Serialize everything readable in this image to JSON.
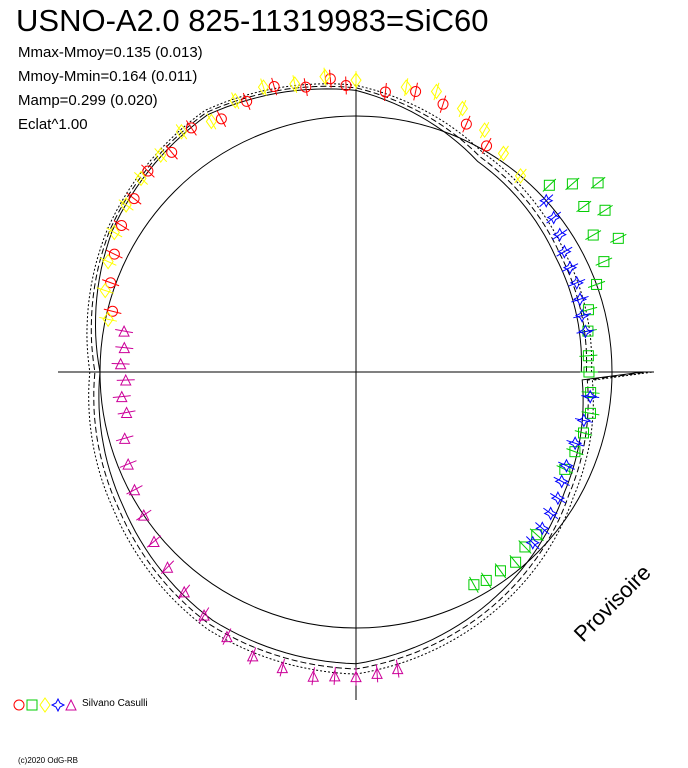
{
  "chart_data": {
    "type": "scatter",
    "projection": "polar-phase",
    "title": "USNO-A2.0 825-11319983=SiC60",
    "stats": [
      "Mmax-Mmoy=0.135 (0.013)",
      "Mmoy-Mmin=0.164 (0.011)",
      "Mamp=0.299 (0.020)",
      "Eclat^1.00"
    ],
    "grid": false,
    "crosshair": true,
    "reference_circle": {
      "radius": 1.0
    },
    "fitted_curves": [
      {
        "style": "solid",
        "phase_deg": [
          0,
          30,
          60,
          90,
          120,
          150,
          180,
          210,
          240,
          270,
          300,
          330
        ],
        "radius": [
          0.88,
          0.9,
          0.95,
          1.1,
          1.16,
          1.1,
          1.0,
          1.05,
          1.12,
          1.14,
          1.04,
          0.94
        ]
      },
      {
        "style": "dashed",
        "phase_deg": [
          0,
          30,
          60,
          90,
          120,
          150,
          180,
          210,
          240,
          270,
          300,
          330
        ],
        "radius": [
          0.9,
          0.92,
          0.97,
          1.11,
          1.17,
          1.11,
          1.02,
          1.07,
          1.14,
          1.16,
          1.06,
          0.96
        ]
      },
      {
        "style": "dotted",
        "phase_deg": [
          0,
          30,
          60,
          90,
          120,
          150,
          180,
          210,
          240,
          270,
          300,
          330
        ],
        "radius": [
          0.92,
          0.94,
          0.99,
          1.12,
          1.18,
          1.12,
          1.04,
          1.09,
          1.16,
          1.18,
          1.08,
          0.98
        ]
      }
    ],
    "series": [
      {
        "symbol": "circle",
        "color": "#ff0000",
        "phase_deg": [
          92,
          95,
          100,
          106,
          112,
          118,
          124,
          130,
          136,
          142,
          148,
          154,
          160,
          166,
          84,
          78,
          72,
          66,
          60
        ],
        "radius": [
          1.12,
          1.15,
          1.13,
          1.16,
          1.14,
          1.12,
          1.15,
          1.12,
          1.13,
          1.1,
          1.08,
          1.05,
          1.02,
          0.98,
          1.1,
          1.12,
          1.1,
          1.06,
          1.02
        ]
      },
      {
        "symbol": "square",
        "color": "#00cc00",
        "phase_deg": [
          44,
          41,
          38,
          36,
          33,
          30,
          27,
          24,
          20,
          15,
          10,
          4,
          0,
          -5,
          -10,
          -15,
          -20,
          -25,
          -42,
          -46,
          -50,
          -54,
          -58,
          -61
        ],
        "radius": [
          1.05,
          1.12,
          1.2,
          1.1,
          1.16,
          1.07,
          1.15,
          1.06,
          1.0,
          0.94,
          0.92,
          0.91,
          0.91,
          0.92,
          0.93,
          0.92,
          0.91,
          0.9,
          0.95,
          0.95,
          0.97,
          0.96,
          0.96,
          0.95
        ]
      },
      {
        "symbol": "diamond",
        "color": "#ffff00",
        "phase_deg": [
          90,
          96,
          102,
          108,
          114,
          120,
          126,
          132,
          138,
          144,
          150,
          156,
          162,
          168,
          80,
          74,
          68,
          62,
          56,
          50
        ],
        "radius": [
          1.14,
          1.16,
          1.15,
          1.17,
          1.16,
          1.13,
          1.16,
          1.14,
          1.13,
          1.11,
          1.09,
          1.06,
          1.03,
          0.99,
          1.13,
          1.14,
          1.11,
          1.07,
          1.03,
          1.0
        ]
      },
      {
        "symbol": "star",
        "color": "#0000ff",
        "phase_deg": [
          42,
          38,
          34,
          30,
          26,
          22,
          18,
          14,
          10,
          -6,
          -12,
          -18,
          -24,
          -28,
          -32,
          -36,
          -40,
          -44
        ],
        "radius": [
          1.0,
          0.98,
          0.96,
          0.94,
          0.93,
          0.93,
          0.92,
          0.91,
          0.91,
          0.92,
          0.91,
          0.9,
          0.9,
          0.91,
          0.93,
          0.94,
          0.95,
          0.96
        ]
      },
      {
        "symbol": "triangle",
        "color": "#cc0099",
        "phase_deg": [
          170,
          174,
          178,
          182,
          186,
          190,
          196,
          202,
          208,
          214,
          220,
          226,
          232,
          238,
          244,
          250,
          256,
          262,
          266,
          270,
          274,
          278
        ],
        "radius": [
          0.92,
          0.91,
          0.92,
          0.9,
          0.92,
          0.91,
          0.94,
          0.96,
          0.98,
          1.0,
          1.03,
          1.06,
          1.09,
          1.12,
          1.15,
          1.18,
          1.19,
          1.2,
          1.19,
          1.19,
          1.18,
          1.17
        ]
      }
    ]
  },
  "legend": {
    "author": "Silvano Casulli"
  },
  "footer": {
    "copyright": "(c)2020 OdG-RB",
    "watermark": "Provisoire"
  }
}
